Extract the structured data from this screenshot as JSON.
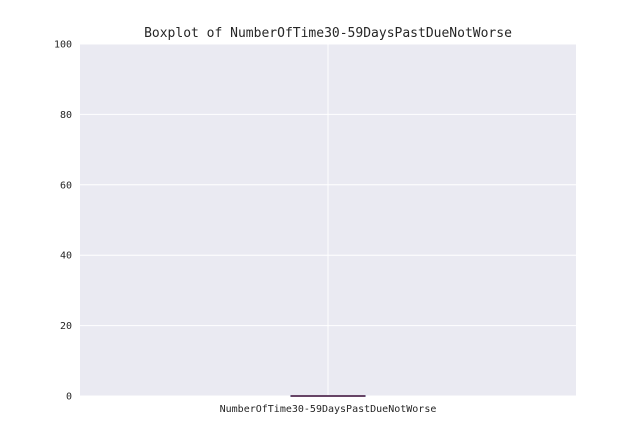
{
  "chart_data": {
    "type": "box",
    "title": "Boxplot of NumberOfTime30-59DaysPastDueNotWorse",
    "categories": [
      "NumberOfTime30-59DaysPastDueNotWorse"
    ],
    "series": [
      {
        "q1": 0,
        "median": 0,
        "q3": 0,
        "whisker_low": 0,
        "whisker_high": 0
      }
    ],
    "ylim": [
      0,
      100
    ],
    "yticks": [
      "0",
      "20",
      "40",
      "60",
      "80",
      "100"
    ],
    "grid": true,
    "box_color": "#4c72b0",
    "median_color": "#c44e52",
    "plot_bg": "#eaeaf2",
    "grid_color": "#ffffff"
  }
}
